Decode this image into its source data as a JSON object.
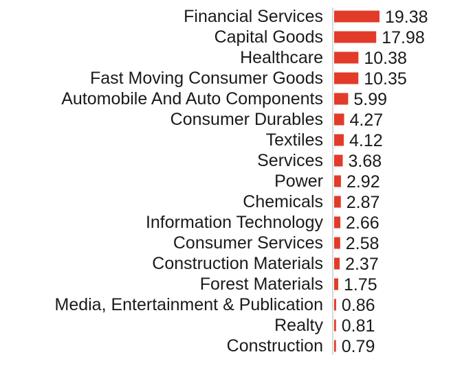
{
  "colors": {
    "bar": "#e23b2a",
    "axis": "#cccccc",
    "text": "#1a1a1a"
  },
  "chart_data": {
    "type": "bar",
    "orientation": "horizontal",
    "title": "",
    "xlabel": "",
    "ylabel": "",
    "xlim": [
      0,
      20
    ],
    "grid": false,
    "categories": [
      "Financial Services",
      "Capital Goods",
      "Healthcare",
      "Fast Moving Consumer Goods",
      "Automobile And Auto Components",
      "Consumer Durables",
      "Textiles",
      "Services",
      "Power",
      "Chemicals",
      "Information Technology",
      "Consumer Services",
      "Construction Materials",
      "Forest Materials",
      "Media, Entertainment & Publication",
      "Realty",
      "Construction"
    ],
    "values": [
      19.38,
      17.98,
      10.38,
      10.35,
      5.99,
      4.27,
      4.12,
      3.68,
      2.92,
      2.87,
      2.66,
      2.58,
      2.37,
      1.75,
      0.86,
      0.81,
      0.79
    ],
    "value_labels": [
      "19.38",
      "17.98",
      "10.38",
      "10.35",
      "5.99",
      "4.27",
      "4.12",
      "3.68",
      "2.92",
      "2.87",
      "2.66",
      "2.58",
      "2.37",
      "1.75",
      "0.86",
      "0.81",
      "0.79"
    ]
  }
}
